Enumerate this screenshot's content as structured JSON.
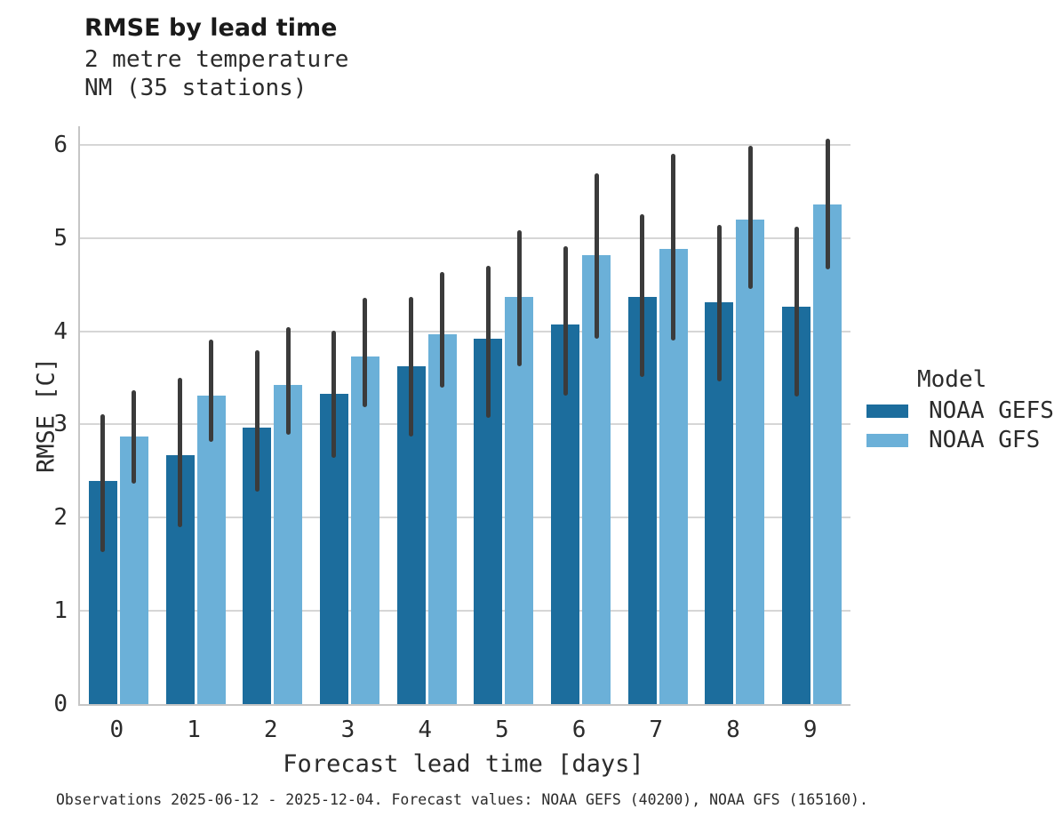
{
  "chart_data": {
    "type": "bar",
    "title": "RMSE by lead time",
    "subtitle": [
      "2 metre temperature",
      "NM (35 stations)"
    ],
    "xlabel": "Forecast lead time [days]",
    "ylabel": "RMSE [C]",
    "categories": [
      "0",
      "1",
      "2",
      "3",
      "4",
      "5",
      "6",
      "7",
      "8",
      "9"
    ],
    "yticks": [
      0,
      1,
      2,
      3,
      4,
      5,
      6
    ],
    "ylim": [
      0,
      6.2
    ],
    "grid": true,
    "legend_title": "Model",
    "legend_position": "right",
    "error_bar_color": "#3b3b3b",
    "axis_color": "#c6c6c6",
    "grid_color": "#d6d6d6",
    "series": [
      {
        "name": "NOAA GEFS",
        "color": "#1c6d9d",
        "values": [
          2.39,
          2.67,
          2.97,
          3.33,
          3.62,
          3.92,
          4.07,
          4.37,
          4.31,
          4.26
        ],
        "err_low": [
          1.63,
          1.9,
          2.28,
          2.64,
          2.87,
          3.07,
          3.31,
          3.51,
          3.46,
          3.3
        ],
        "err_high": [
          3.11,
          3.5,
          3.8,
          4.01,
          4.37,
          4.7,
          4.91,
          5.26,
          5.14,
          5.12
        ]
      },
      {
        "name": "NOAA GFS",
        "color": "#6bb0d8",
        "values": [
          2.87,
          3.31,
          3.42,
          3.73,
          3.97,
          4.37,
          4.82,
          4.88,
          5.2,
          5.36
        ],
        "err_low": [
          2.37,
          2.81,
          2.89,
          3.19,
          3.4,
          3.62,
          3.92,
          3.9,
          4.45,
          4.66
        ],
        "err_high": [
          3.37,
          3.91,
          4.04,
          4.36,
          4.64,
          5.08,
          5.69,
          5.9,
          5.99,
          6.07
        ]
      }
    ]
  },
  "footer": {
    "caption": "Observations 2025-06-12 - 2025-12-04. Forecast values: NOAA GEFS (40200), NOAA GFS (165160)."
  }
}
